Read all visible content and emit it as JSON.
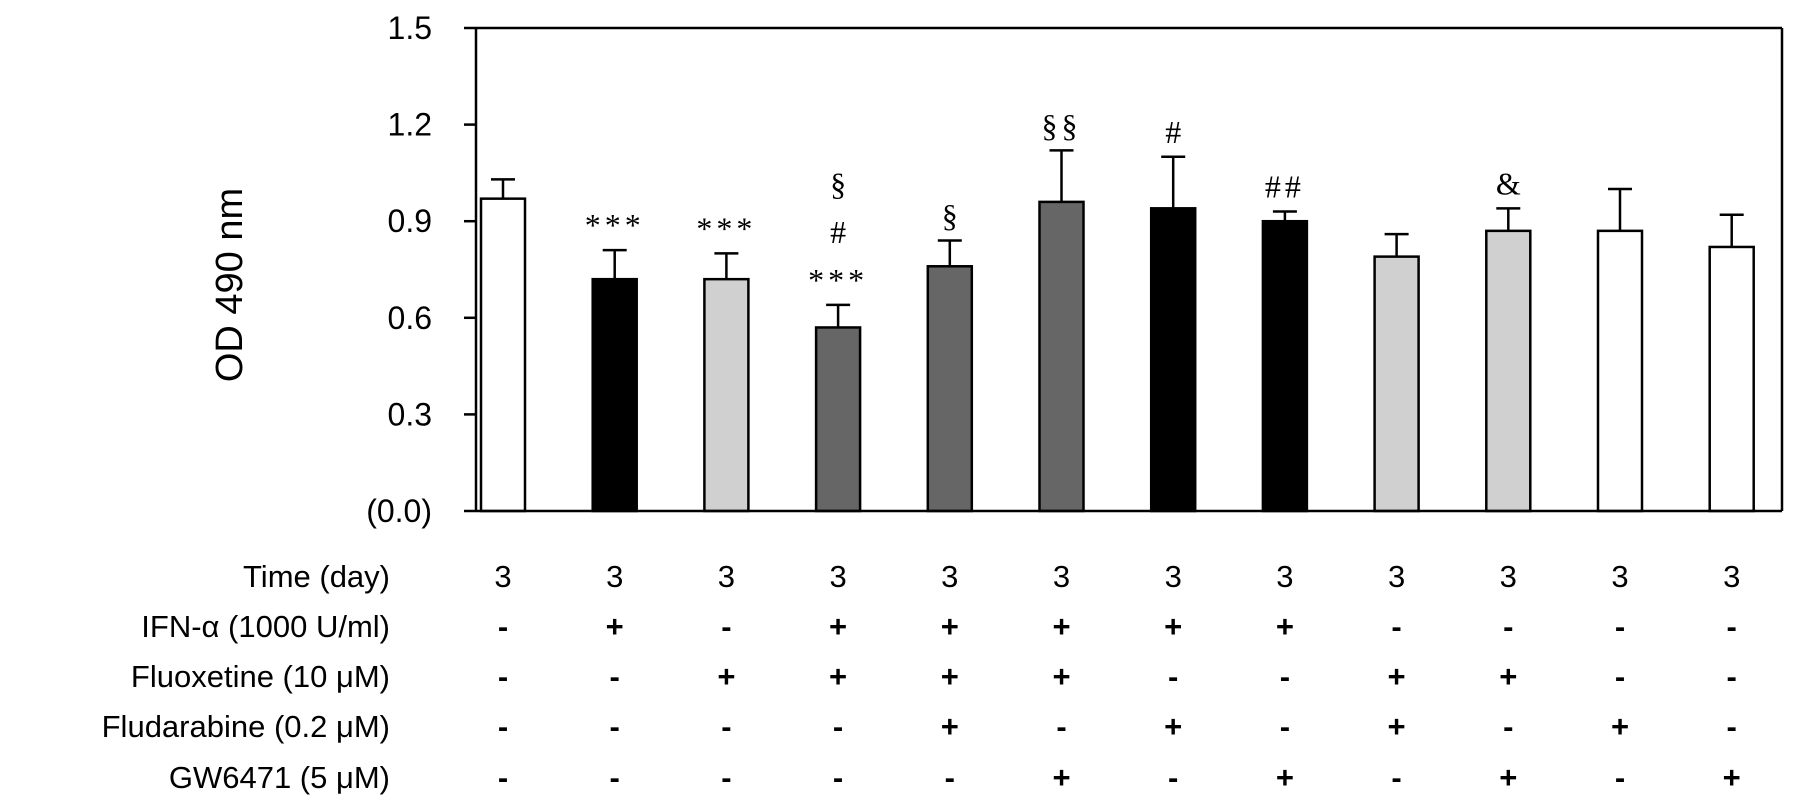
{
  "chart_data": {
    "type": "bar",
    "ylabel": "OD 490 nm",
    "ylim": [
      0,
      1.5
    ],
    "yticks": [
      {
        "value": 1.5,
        "label": "1.5"
      },
      {
        "value": 1.2,
        "label": "1.2"
      },
      {
        "value": 0.9,
        "label": "0.9"
      },
      {
        "value": 0.6,
        "label": "0.6"
      },
      {
        "value": 0.3,
        "label": "0.3"
      },
      {
        "value": 0.0,
        "label": "(0.0)"
      }
    ],
    "grid": false,
    "bars": [
      {
        "value": 0.97,
        "error": 0.06,
        "color": "#ffffff",
        "annotation": []
      },
      {
        "value": 0.72,
        "error": 0.09,
        "color": "#000000",
        "annotation": [
          "***"
        ]
      },
      {
        "value": 0.72,
        "error": 0.08,
        "color": "#d0d0d0",
        "annotation": [
          "***"
        ]
      },
      {
        "value": 0.57,
        "error": 0.07,
        "color": "#666666",
        "annotation": [
          "§",
          "#",
          "***"
        ]
      },
      {
        "value": 0.76,
        "error": 0.08,
        "color": "#666666",
        "annotation": [
          "§"
        ]
      },
      {
        "value": 0.96,
        "error": 0.16,
        "color": "#666666",
        "annotation": [
          "§§"
        ]
      },
      {
        "value": 0.94,
        "error": 0.16,
        "color": "#000000",
        "annotation": [
          "#"
        ]
      },
      {
        "value": 0.9,
        "error": 0.03,
        "color": "#000000",
        "annotation": [
          "##"
        ]
      },
      {
        "value": 0.79,
        "error": 0.07,
        "color": "#d0d0d0",
        "annotation": []
      },
      {
        "value": 0.87,
        "error": 0.07,
        "color": "#d0d0d0",
        "annotation": [
          "&"
        ]
      },
      {
        "value": 0.87,
        "error": 0.13,
        "color": "#ffffff",
        "annotation": []
      },
      {
        "value": 0.82,
        "error": 0.1,
        "color": "#ffffff",
        "annotation": []
      }
    ],
    "conditions_table": [
      {
        "label": "Time (day)",
        "values": [
          "3",
          "3",
          "3",
          "3",
          "3",
          "3",
          "3",
          "3",
          "3",
          "3",
          "3",
          "3"
        ]
      },
      {
        "label": "IFN-α (1000 U/ml)",
        "values": [
          "-",
          "+",
          "-",
          "+",
          "+",
          "+",
          "+",
          "+",
          "-",
          "-",
          "-",
          "-"
        ]
      },
      {
        "label": "Fluoxetine (10 μM)",
        "values": [
          "-",
          "-",
          "+",
          "+",
          "+",
          "+",
          "-",
          "-",
          "+",
          "+",
          "-",
          "-"
        ]
      },
      {
        "label": "Fludarabine (0.2 μM)",
        "values": [
          "-",
          "-",
          "-",
          "-",
          "+",
          "-",
          "+",
          "-",
          "+",
          "-",
          "+",
          "-"
        ]
      },
      {
        "label": "GW6471 (5 μM)",
        "values": [
          "-",
          "-",
          "-",
          "-",
          "-",
          "+",
          "-",
          "+",
          "-",
          "+",
          "-",
          "+"
        ]
      }
    ]
  }
}
